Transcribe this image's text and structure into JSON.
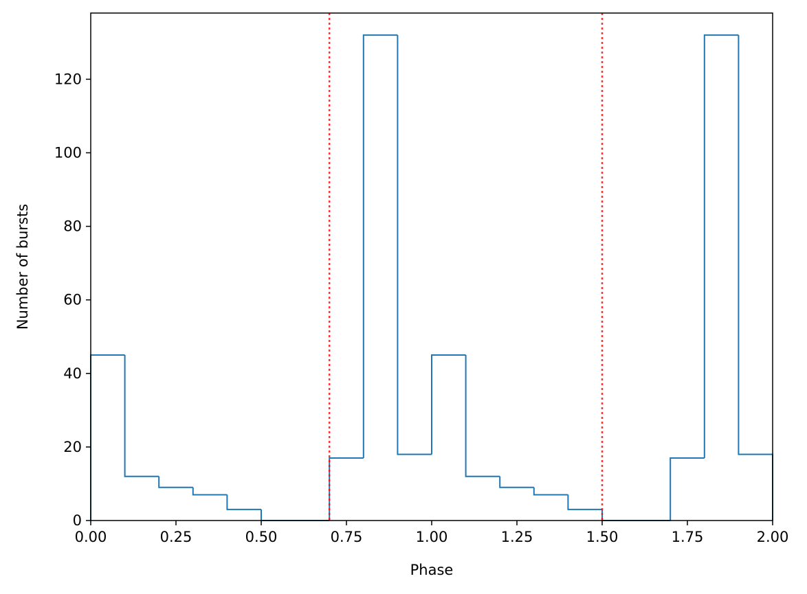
{
  "chart_data": {
    "type": "histogram-step",
    "title": "",
    "xlabel": "Phase",
    "ylabel": "Number of bursts",
    "xlim": [
      0,
      2
    ],
    "ylim": [
      0,
      138
    ],
    "xticks": [
      0.0,
      0.25,
      0.5,
      0.75,
      1.0,
      1.25,
      1.5,
      1.75,
      2.0
    ],
    "xtick_labels": [
      "0.00",
      "0.25",
      "0.50",
      "0.75",
      "1.00",
      "1.25",
      "1.50",
      "1.75",
      "2.00"
    ],
    "yticks": [
      0,
      20,
      40,
      60,
      80,
      100,
      120
    ],
    "ytick_labels": [
      "0",
      "20",
      "40",
      "60",
      "80",
      "100",
      "120"
    ],
    "bin_edges": [
      0.0,
      0.1,
      0.2,
      0.3,
      0.4,
      0.5,
      0.6,
      0.7,
      0.8,
      0.9,
      1.0,
      1.1,
      1.2,
      1.3,
      1.4,
      1.5,
      1.6,
      1.7,
      1.8,
      1.9,
      2.0
    ],
    "counts": [
      45,
      12,
      9,
      7,
      3,
      0,
      0,
      17,
      132,
      18,
      45,
      12,
      9,
      7,
      3,
      0,
      0,
      17,
      132,
      18
    ],
    "series_color": "#1f77b4",
    "vertical_lines": [
      {
        "x": 0.7,
        "color": "#ff0000",
        "style": "dotted"
      },
      {
        "x": 1.5,
        "color": "#ff0000",
        "style": "dotted"
      }
    ],
    "grid": false,
    "legend": "none"
  }
}
